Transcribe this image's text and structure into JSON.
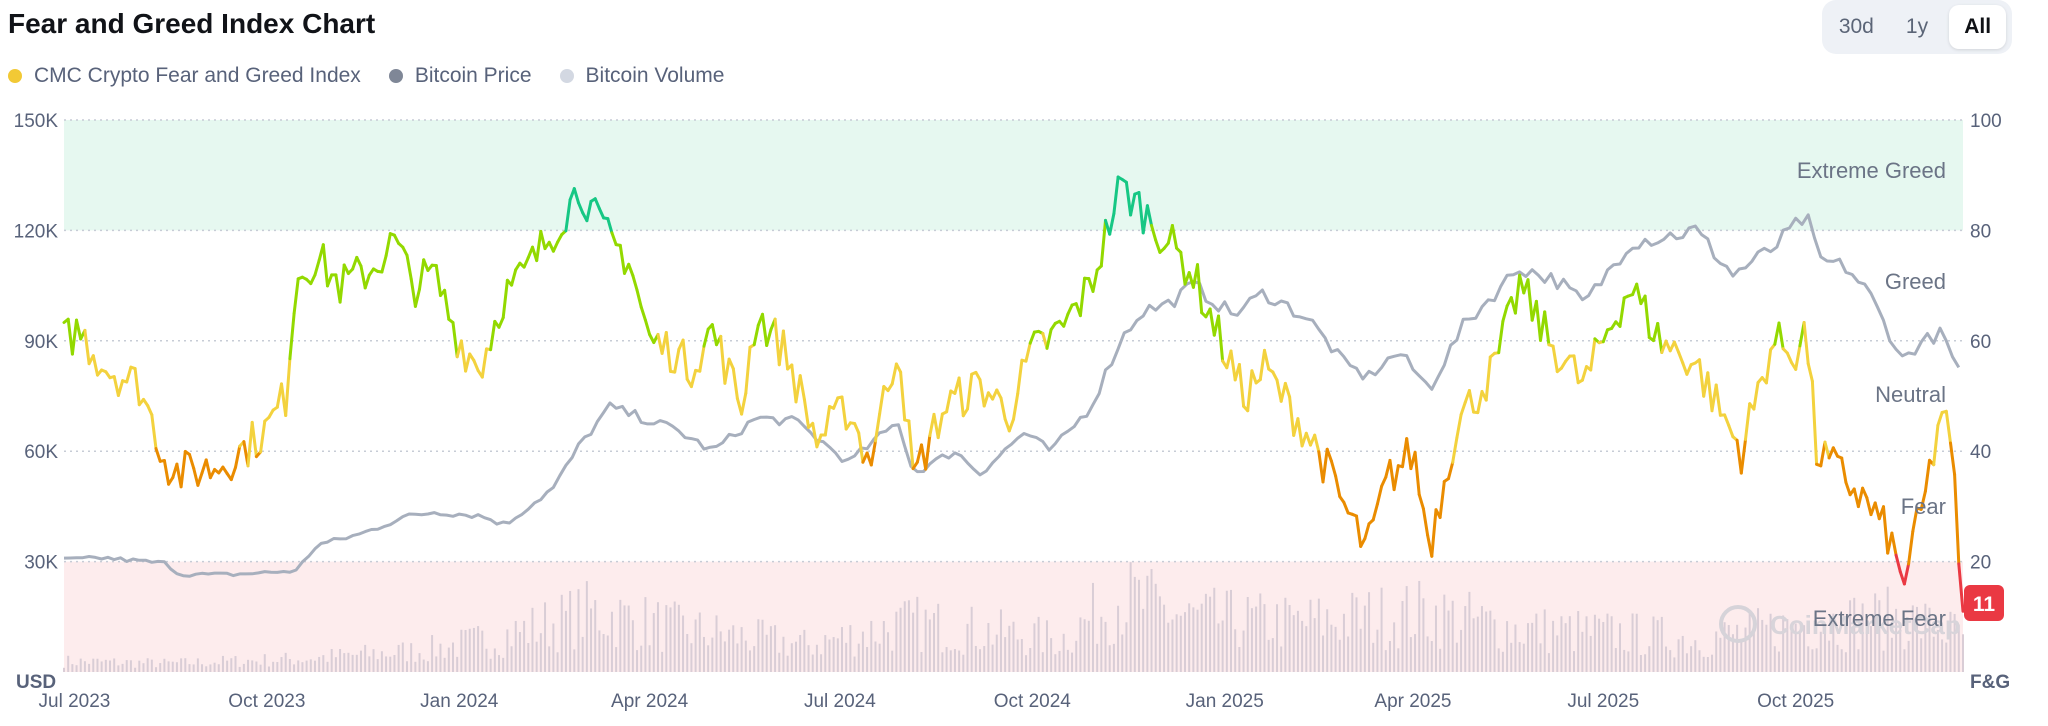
{
  "title": "Fear and Greed Index Chart",
  "range_tabs": [
    {
      "label": "30d",
      "active": false
    },
    {
      "label": "1y",
      "active": false
    },
    {
      "label": "All",
      "active": true
    }
  ],
  "legend": [
    {
      "label": "CMC Crypto Fear and Greed Index",
      "color": "#f2c935"
    },
    {
      "label": "Bitcoin Price",
      "color": "#7f8797"
    },
    {
      "label": "Bitcoin Volume",
      "color": "#d3d8e2"
    }
  ],
  "watermark": "CoinMarketCap",
  "colors": {
    "extreme_greed": "#16c784",
    "greed": "#93d900",
    "neutral": "#f3d23e",
    "fear": "#ea8c00",
    "extreme_fear": "#ea3943",
    "price_line": "#a7afbd",
    "volume": "#d9cdd6",
    "greed_zone_bg": "#e6f8f0",
    "fear_zone_bg": "#fdeced"
  },
  "chart_data": {
    "type": "line",
    "x_tick_labels": [
      "Jul 2023",
      "Oct 2023",
      "Jan 2024",
      "Apr 2024",
      "Jul 2024",
      "Oct 2024",
      "Jan 2025",
      "Apr 2025",
      "Jul 2025",
      "Oct 2025"
    ],
    "left_axis": {
      "label": "USD",
      "ticks": [
        "150K",
        "120K",
        "90K",
        "60K",
        "30K"
      ],
      "range": [
        0,
        150000
      ]
    },
    "right_axis": {
      "label": "F&G",
      "ticks": [
        "100",
        "80",
        "60",
        "40",
        "20"
      ],
      "range": [
        0,
        100
      ]
    },
    "zones": [
      {
        "label": "Extreme Greed",
        "from": 80,
        "to": 100
      },
      {
        "label": "Greed",
        "from": 60,
        "to": 80
      },
      {
        "label": "Neutral",
        "from": 40,
        "to": 60
      },
      {
        "label": "Fear",
        "from": 20,
        "to": 40
      },
      {
        "label": "Extreme Fear",
        "from": 0,
        "to": 20
      }
    ],
    "current_value": "11",
    "x_range": [
      "2023-06-26",
      "2025-12-20"
    ],
    "series": [
      {
        "name": "CMC Crypto Fear and Greed Index",
        "x": [
          "2023-06-26",
          "2023-07-03",
          "2023-07-10",
          "2023-07-17",
          "2023-08-01",
          "2023-08-14",
          "2023-08-20",
          "2023-09-05",
          "2023-09-15",
          "2023-09-25",
          "2023-10-01",
          "2023-10-10",
          "2023-10-15",
          "2023-10-25",
          "2023-11-05",
          "2023-11-20",
          "2023-12-01",
          "2023-12-10",
          "2023-12-20",
          "2024-01-01",
          "2024-01-11",
          "2024-01-22",
          "2024-02-01",
          "2024-02-15",
          "2024-02-28",
          "2024-03-06",
          "2024-03-13",
          "2024-03-22",
          "2024-04-01",
          "2024-04-13",
          "2024-04-20",
          "2024-05-01",
          "2024-05-15",
          "2024-05-22",
          "2024-06-05",
          "2024-06-20",
          "2024-07-05",
          "2024-07-15",
          "2024-07-29",
          "2024-08-05",
          "2024-08-20",
          "2024-09-06",
          "2024-09-20",
          "2024-10-01",
          "2024-10-15",
          "2024-10-29",
          "2024-11-12",
          "2024-11-22",
          "2024-12-05",
          "2024-12-17",
          "2024-12-30",
          "2025-01-10",
          "2025-01-20",
          "2025-02-01",
          "2025-02-15",
          "2025-02-27",
          "2025-03-10",
          "2025-03-20",
          "2025-04-01",
          "2025-04-09",
          "2025-04-22",
          "2025-05-10",
          "2025-05-22",
          "2025-06-05",
          "2025-06-22",
          "2025-07-03",
          "2025-07-14",
          "2025-07-28",
          "2025-08-14",
          "2025-08-25",
          "2025-09-05",
          "2025-09-20",
          "2025-10-01",
          "2025-10-06",
          "2025-10-11",
          "2025-10-25",
          "2025-11-05",
          "2025-11-14",
          "2025-11-21",
          "2025-12-01",
          "2025-12-10",
          "2025-12-15",
          "2025-12-20"
        ],
        "values": [
          60,
          62,
          58,
          55,
          52,
          38,
          36,
          37,
          39,
          42,
          44,
          50,
          72,
          75,
          70,
          73,
          78,
          70,
          72,
          60,
          55,
          68,
          72,
          80,
          88,
          82,
          78,
          75,
          60,
          58,
          55,
          62,
          48,
          65,
          58,
          42,
          48,
          38,
          60,
          35,
          48,
          52,
          47,
          58,
          62,
          70,
          88,
          84,
          78,
          72,
          60,
          50,
          55,
          48,
          40,
          30,
          22,
          35,
          40,
          23,
          45,
          55,
          70,
          60,
          52,
          62,
          70,
          60,
          56,
          48,
          40,
          60,
          58,
          62,
          40,
          35,
          30,
          25,
          16,
          30,
          48,
          38,
          11
        ]
      },
      {
        "name": "Bitcoin Price",
        "x": [
          "2023-06-26",
          "2023-07-15",
          "2023-08-14",
          "2023-08-20",
          "2023-09-15",
          "2023-10-15",
          "2023-10-25",
          "2023-11-15",
          "2023-12-05",
          "2023-12-20",
          "2024-01-11",
          "2024-01-23",
          "2024-02-15",
          "2024-02-28",
          "2024-03-13",
          "2024-04-13",
          "2024-05-01",
          "2024-05-22",
          "2024-06-10",
          "2024-07-05",
          "2024-07-29",
          "2024-08-05",
          "2024-08-25",
          "2024-09-06",
          "2024-09-27",
          "2024-10-10",
          "2024-10-29",
          "2024-11-12",
          "2024-11-22",
          "2024-12-05",
          "2024-12-17",
          "2025-01-05",
          "2025-01-20",
          "2025-02-10",
          "2025-02-27",
          "2025-03-10",
          "2025-03-25",
          "2025-04-09",
          "2025-04-25",
          "2025-05-22",
          "2025-06-10",
          "2025-06-22",
          "2025-07-14",
          "2025-07-28",
          "2025-08-14",
          "2025-09-01",
          "2025-09-20",
          "2025-10-06",
          "2025-10-12",
          "2025-10-25",
          "2025-11-05",
          "2025-11-21",
          "2025-12-01",
          "2025-12-10",
          "2025-12-20"
        ],
        "values": [
          30500,
          31000,
          29500,
          26500,
          26500,
          27500,
          34500,
          37500,
          42000,
          43500,
          42500,
          40000,
          50000,
          62000,
          72000,
          66000,
          60000,
          69000,
          68000,
          57000,
          68000,
          54000,
          60000,
          54000,
          65000,
          60000,
          72000,
          90000,
          98000,
          100000,
          105000,
          97000,
          103000,
          96000,
          84000,
          80000,
          87000,
          77000,
          94000,
          110000,
          106000,
          100000,
          117000,
          118000,
          120000,
          108000,
          115000,
          124000,
          112000,
          110000,
          103000,
          85000,
          90000,
          92000,
          79000
        ]
      },
      {
        "name": "Bitcoin Volume",
        "x": [
          "2023-06-26",
          "2023-08-15",
          "2023-10-15",
          "2023-12-15",
          "2024-01-15",
          "2024-03-05",
          "2024-04-15",
          "2024-06-15",
          "2024-08-05",
          "2024-10-15",
          "2024-11-12",
          "2024-12-15",
          "2025-02-05",
          "2025-04-07",
          "2025-05-20",
          "2025-07-15",
          "2025-08-15",
          "2025-10-10",
          "2025-11-20",
          "2025-12-20"
        ],
        "values": [
          0.1,
          0.08,
          0.12,
          0.2,
          0.3,
          0.55,
          0.4,
          0.25,
          0.45,
          0.3,
          0.7,
          0.5,
          0.45,
          0.55,
          0.4,
          0.35,
          0.3,
          0.45,
          0.5,
          0.35
        ]
      }
    ]
  }
}
